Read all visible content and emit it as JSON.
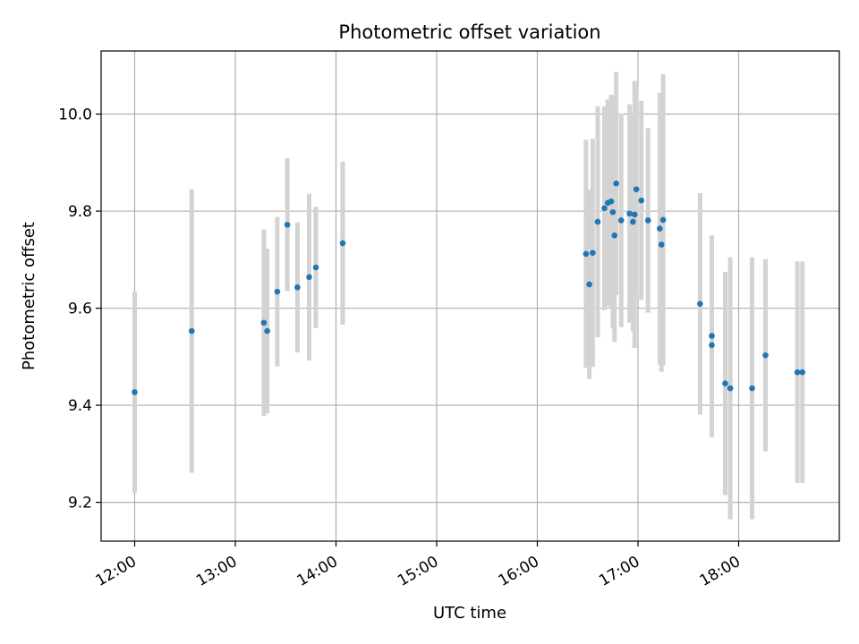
{
  "chart_data": {
    "type": "scatter",
    "title": "Photometric offset variation",
    "xlabel": "UTC time",
    "ylabel": "Photometric offset",
    "x_tick_labels": [
      "12:00",
      "13:00",
      "14:00",
      "15:00",
      "16:00",
      "17:00",
      "18:00"
    ],
    "y_tick_labels": [
      "9.2",
      "9.4",
      "9.6",
      "9.8",
      "10.0"
    ],
    "grid": true,
    "xlim": [
      "11:40",
      "19:00"
    ],
    "ylim": [
      9.12,
      10.13
    ],
    "colors": {
      "point": "#1f77b4",
      "errorbar": "#d3d3d3",
      "grid": "#b0b0b0"
    },
    "points": [
      {
        "x": "12:00",
        "y": 9.427,
        "yerr": 0.207
      },
      {
        "x": "12:34",
        "y": 9.553,
        "yerr": 0.292
      },
      {
        "x": "13:17",
        "y": 9.57,
        "yerr": 0.192
      },
      {
        "x": "13:19",
        "y": 9.553,
        "yerr": 0.17
      },
      {
        "x": "13:25",
        "y": 9.634,
        "yerr": 0.154
      },
      {
        "x": "13:31",
        "y": 9.772,
        "yerr": 0.137
      },
      {
        "x": "13:37",
        "y": 9.643,
        "yerr": 0.134
      },
      {
        "x": "13:44",
        "y": 9.664,
        "yerr": 0.172
      },
      {
        "x": "13:48",
        "y": 9.684,
        "yerr": 0.125
      },
      {
        "x": "14:04",
        "y": 9.734,
        "yerr": 0.168
      },
      {
        "x": "16:29",
        "y": 9.712,
        "yerr": 0.235
      },
      {
        "x": "16:31",
        "y": 9.649,
        "yerr": 0.195
      },
      {
        "x": "16:33",
        "y": 9.714,
        "yerr": 0.235
      },
      {
        "x": "16:36",
        "y": 9.778,
        "yerr": 0.238
      },
      {
        "x": "16:40",
        "y": 9.806,
        "yerr": 0.21
      },
      {
        "x": "16:42",
        "y": 9.817,
        "yerr": 0.213
      },
      {
        "x": "16:44",
        "y": 9.82,
        "yerr": 0.22
      },
      {
        "x": "16:45",
        "y": 9.798,
        "yerr": 0.24
      },
      {
        "x": "16:46",
        "y": 9.75,
        "yerr": 0.22
      },
      {
        "x": "16:47",
        "y": 9.857,
        "yerr": 0.23
      },
      {
        "x": "16:50",
        "y": 9.781,
        "yerr": 0.22
      },
      {
        "x": "16:55",
        "y": 9.795,
        "yerr": 0.225
      },
      {
        "x": "16:57",
        "y": 9.778,
        "yerr": 0.225
      },
      {
        "x": "16:58",
        "y": 9.793,
        "yerr": 0.275
      },
      {
        "x": "16:59",
        "y": 9.845,
        "yerr": 0.215
      },
      {
        "x": "17:02",
        "y": 9.822,
        "yerr": 0.205
      },
      {
        "x": "17:06",
        "y": 9.781,
        "yerr": 0.19
      },
      {
        "x": "17:13",
        "y": 9.764,
        "yerr": 0.28
      },
      {
        "x": "17:14",
        "y": 9.731,
        "yerr": 0.262
      },
      {
        "x": "17:15",
        "y": 9.782,
        "yerr": 0.3
      },
      {
        "x": "17:37",
        "y": 9.609,
        "yerr": 0.228
      },
      {
        "x": "17:44",
        "y": 9.524,
        "yerr": 0.19
      },
      {
        "x": "17:44",
        "y": 9.543,
        "yerr": 0.207
      },
      {
        "x": "17:52",
        "y": 9.445,
        "yerr": 0.23
      },
      {
        "x": "17:55",
        "y": 9.435,
        "yerr": 0.27
      },
      {
        "x": "18:08",
        "y": 9.435,
        "yerr": 0.27
      },
      {
        "x": "18:16",
        "y": 9.503,
        "yerr": 0.198
      },
      {
        "x": "18:35",
        "y": 9.468,
        "yerr": 0.228
      },
      {
        "x": "18:38",
        "y": 9.468,
        "yerr": 0.228
      }
    ]
  }
}
